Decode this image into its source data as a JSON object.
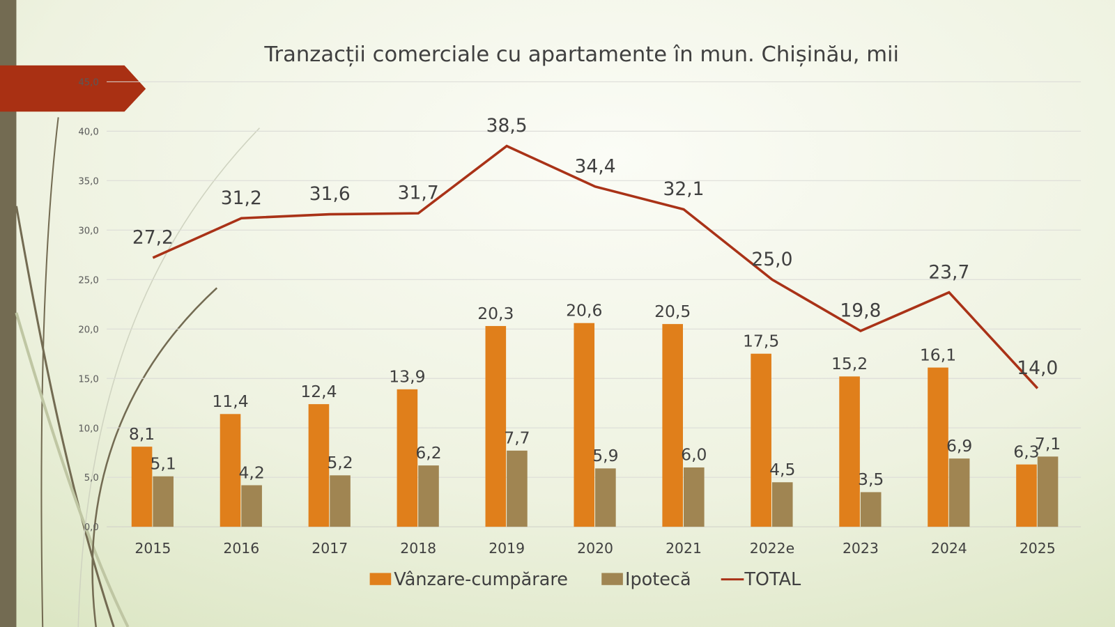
{
  "chart_data": {
    "type": "bar",
    "title": "Tranzacții comerciale cu apartamente în mun. Chișinău, mii",
    "categories": [
      "2015",
      "2016",
      "2017",
      "2018",
      "2019",
      "2020",
      "2021",
      "2022e",
      "2023",
      "2024",
      "2025"
    ],
    "series": [
      {
        "name": "Vânzare-cumpărare",
        "type": "bar",
        "color": "#E07F1B",
        "values": [
          8.1,
          11.4,
          12.4,
          13.9,
          20.3,
          20.6,
          20.5,
          17.5,
          15.2,
          16.1,
          6.3
        ],
        "labels": [
          "8,1",
          "11,4",
          "12,4",
          "13,9",
          "20,3",
          "20,6",
          "20,5",
          "17,5",
          "15,2",
          "16,1",
          "6,3"
        ]
      },
      {
        "name": "Ipotecă",
        "type": "bar",
        "color": "#A08552",
        "values": [
          5.1,
          4.2,
          5.2,
          6.2,
          7.7,
          5.9,
          6.0,
          4.5,
          3.5,
          6.9,
          7.1
        ],
        "labels": [
          "5,1",
          "4,2",
          "5,2",
          "6,2",
          "7,7",
          "5,9",
          "6,0",
          "4,5",
          "3,5",
          "6,9",
          "7,1"
        ]
      },
      {
        "name": "TOTAL",
        "type": "line",
        "color": "#A93217",
        "values": [
          27.2,
          31.2,
          31.6,
          31.7,
          38.5,
          34.4,
          32.1,
          25.0,
          19.8,
          23.7,
          14.0
        ],
        "labels": [
          "27,2",
          "31,2",
          "31,6",
          "31,7",
          "38,5",
          "34,4",
          "32,1",
          "25,0",
          "19,8",
          "23,7",
          "14,0"
        ]
      }
    ],
    "ylim": [
      0,
      45
    ],
    "yticks": [
      "0,0",
      "5,0",
      "10,0",
      "15,0",
      "20,0",
      "25,0",
      "30,0",
      "35,0",
      "40,0",
      "45,0"
    ],
    "grid": true,
    "legend": "bottom",
    "xlabel": "",
    "ylabel": ""
  }
}
